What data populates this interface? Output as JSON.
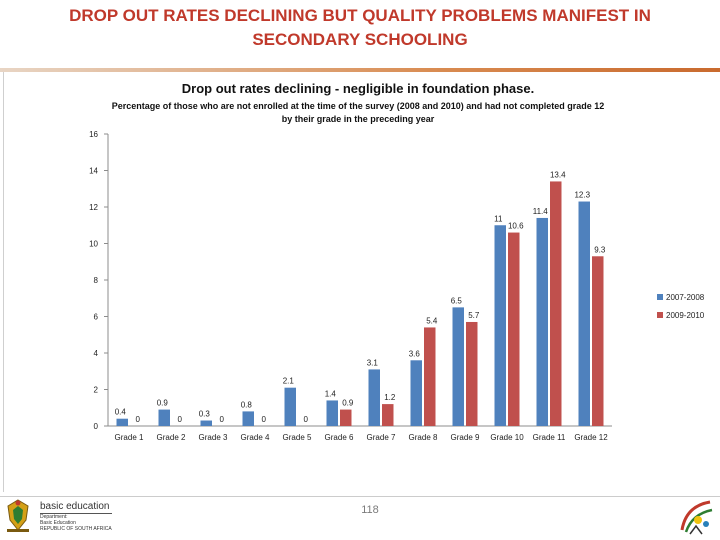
{
  "slide": {
    "title_line1": "DROP OUT RATES DECLINING BUT QUALITY PROBLEMS MANIFEST IN",
    "title_line2": "SECONDARY SCHOOLING",
    "page_number": "118"
  },
  "footer": {
    "brand_name": "basic education",
    "brand_lines": [
      "Department:",
      "Basic Education",
      "REPUBLIC OF SOUTH AFRICA"
    ]
  },
  "colors": {
    "title": "#c0392b",
    "series1": "#4f81bd",
    "series2": "#c0504d"
  },
  "chart_data": {
    "type": "bar",
    "title": "Drop out rates declining - negligible in foundation phase.",
    "subtitle_line1": "Percentage of those who are not enrolled at the time of the survey (2008 and 2010) and had not completed grade 12",
    "subtitle_line2": "by their grade in the preceding year",
    "categories": [
      "Grade 1",
      "Grade 2",
      "Grade 3",
      "Grade 4",
      "Grade 5",
      "Grade 6",
      "Grade 7",
      "Grade 8",
      "Grade 9",
      "Grade 10",
      "Grade 11",
      "Grade 12"
    ],
    "series": [
      {
        "name": "2007-2008",
        "values": [
          0.4,
          0.9,
          0.3,
          0.8,
          2.1,
          1.4,
          3.1,
          3.6,
          6.5,
          11,
          11.4,
          12.3
        ],
        "value_labels": [
          "0.4",
          "0.9",
          "0.3",
          "0.8",
          "2.1",
          "1.4",
          "3.1",
          "3.6",
          "6.5",
          "11",
          "11.4",
          "12.3"
        ]
      },
      {
        "name": "2009-2010",
        "values": [
          0,
          0,
          0,
          0,
          0,
          0.9,
          1.2,
          5.4,
          5.7,
          10.6,
          13.4,
          9.3
        ],
        "value_labels": [
          "0",
          "0",
          "0",
          "0",
          "0",
          "0.9",
          "1.2",
          "5.4",
          "5.7",
          "10.6",
          "13.4",
          "9.3"
        ]
      }
    ],
    "yticks": [
      "0",
      "2",
      "4",
      "6",
      "8",
      "10",
      "12",
      "14",
      "16"
    ],
    "ylim": [
      0,
      16
    ],
    "grid": false,
    "legend": "right"
  }
}
